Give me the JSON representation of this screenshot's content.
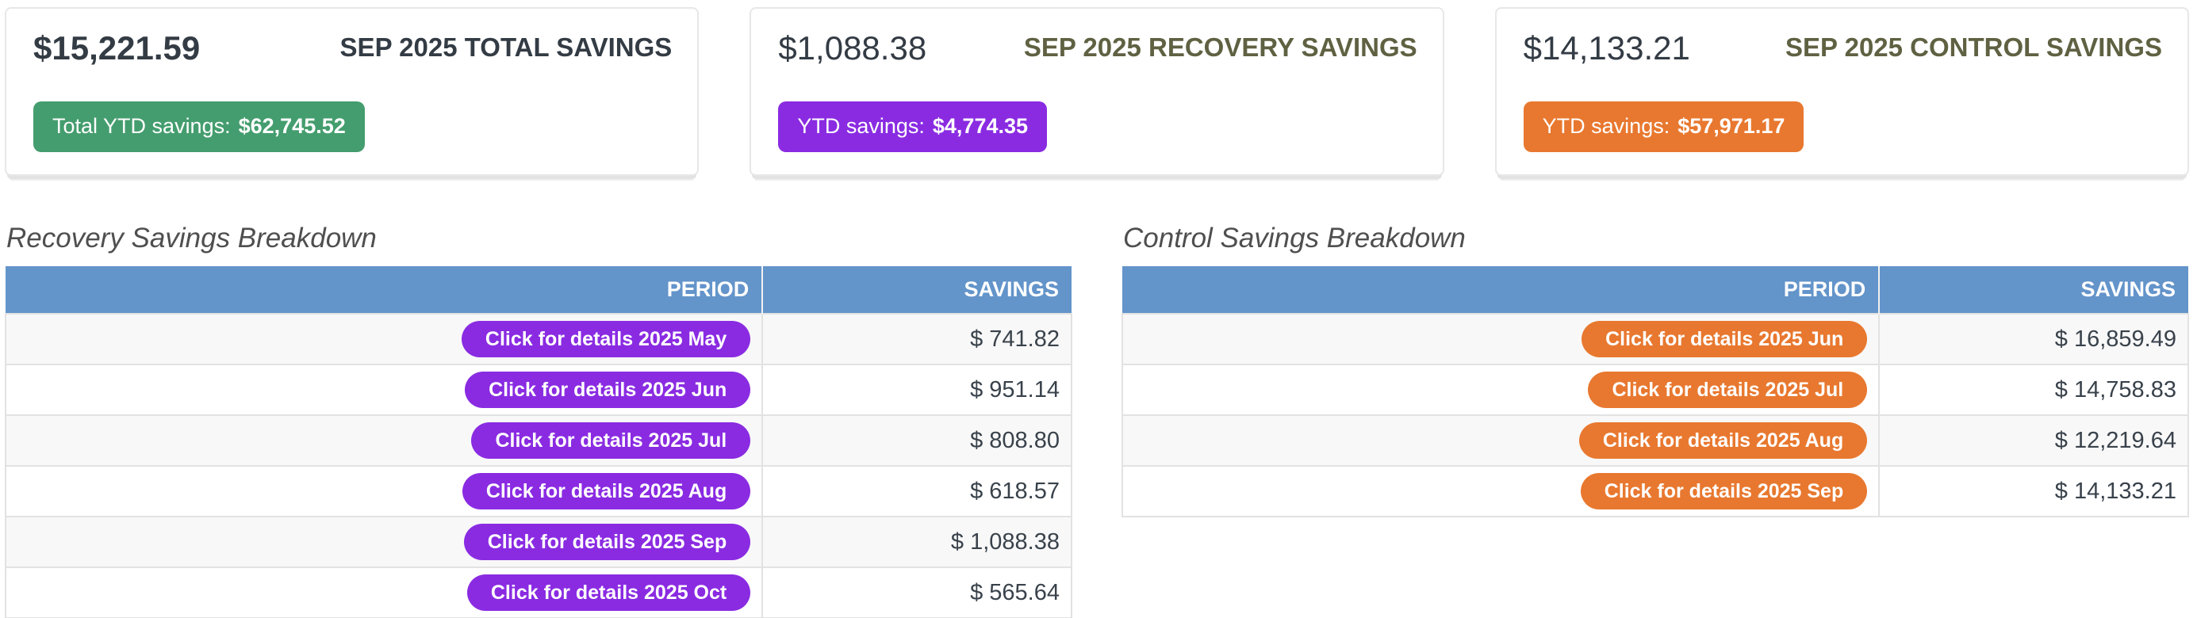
{
  "summary_cards": [
    {
      "amount": "$15,221.59",
      "title": "SEP 2025 TOTAL SAVINGS",
      "badge": {
        "label": "Total YTD savings:",
        "value": "$62,745.52"
      },
      "badge_color": "#449d6e"
    },
    {
      "amount": "$1,088.38",
      "title": "SEP 2025 RECOVERY SAVINGS",
      "badge": {
        "label": "YTD savings:",
        "value": "$4,774.35"
      },
      "badge_color": "#8a2be2"
    },
    {
      "amount": "$14,133.21",
      "title": "SEP 2025 CONTROL SAVINGS",
      "badge": {
        "label": "YTD savings:",
        "value": "$57,971.17"
      },
      "badge_color": "#e8782f"
    }
  ],
  "tables": [
    {
      "title": "Recovery Savings Breakdown",
      "columns": {
        "period": "PERIOD",
        "savings": "SAVINGS"
      },
      "pill_color": "#8a2be2",
      "rows": [
        {
          "button": "Click for details 2025 May",
          "savings": "$ 741.82"
        },
        {
          "button": "Click for details 2025 Jun",
          "savings": "$ 951.14"
        },
        {
          "button": "Click for details 2025 Jul",
          "savings": "$ 808.80"
        },
        {
          "button": "Click for details 2025 Aug",
          "savings": "$ 618.57"
        },
        {
          "button": "Click for details 2025 Sep",
          "savings": "$ 1,088.38"
        },
        {
          "button": "Click for details 2025 Oct",
          "savings": "$ 565.64"
        }
      ]
    },
    {
      "title": "Control Savings Breakdown",
      "columns": {
        "period": "PERIOD",
        "savings": "SAVINGS"
      },
      "pill_color": "#e8782f",
      "rows": [
        {
          "button": "Click for details 2025 Jun",
          "savings": "$ 16,859.49"
        },
        {
          "button": "Click for details 2025 Jul",
          "savings": "$ 14,758.83"
        },
        {
          "button": "Click for details 2025 Aug",
          "savings": "$ 12,219.64"
        },
        {
          "button": "Click for details 2025 Sep",
          "savings": "$ 14,133.21"
        }
      ]
    }
  ],
  "colors": {
    "table_header": "#6394ca",
    "total_badge": "#449d6e",
    "recovery_accent": "#8a2be2",
    "control_accent": "#e8782f"
  }
}
